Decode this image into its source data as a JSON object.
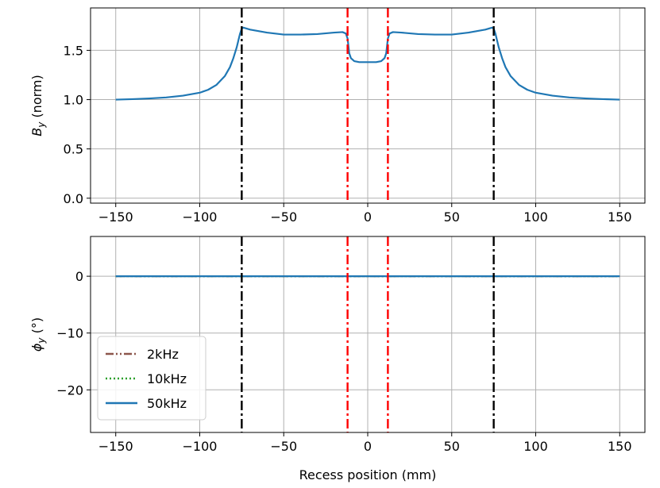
{
  "chart_data": [
    {
      "type": "line",
      "xlim": [
        -165,
        165
      ],
      "ylim": [
        -0.05,
        1.93
      ],
      "xticks": [
        -150,
        -100,
        -50,
        0,
        50,
        100,
        150
      ],
      "xtick_labels": [
        "−150",
        "−100",
        "−50",
        "0",
        "50",
        "100",
        "150"
      ],
      "yticks": [
        0.0,
        0.5,
        1.0,
        1.5
      ],
      "ytick_labels": [
        "0.0",
        "0.5",
        "1.0",
        "1.5"
      ],
      "ylabel_main": "B",
      "ylabel_sub": "y",
      "ylabel_rest": " (norm)",
      "grid": true,
      "vlines": [
        {
          "x": -75,
          "color": "#000000",
          "style": "dashdot"
        },
        {
          "x": 75,
          "color": "#000000",
          "style": "dashdot"
        },
        {
          "x": -12,
          "color": "#ff0000",
          "style": "dashdot"
        },
        {
          "x": 12,
          "color": "#ff0000",
          "style": "dashdot"
        }
      ],
      "series": [
        {
          "color": "#1f77b4",
          "x": [
            -150,
            -140,
            -130,
            -120,
            -110,
            -100,
            -95,
            -90,
            -85,
            -82,
            -80,
            -78,
            -77,
            -76,
            -75,
            -74,
            -72,
            -70,
            -60,
            -50,
            -40,
            -30,
            -20,
            -15,
            -13,
            -12,
            -11,
            -10,
            -8,
            -5,
            0,
            5,
            8,
            10,
            11,
            12,
            13,
            15,
            20,
            30,
            40,
            50,
            60,
            70,
            72,
            74,
            75,
            76,
            77,
            78,
            80,
            82,
            85,
            90,
            95,
            100,
            110,
            120,
            130,
            140,
            150
          ],
          "y": [
            1.0,
            1.005,
            1.012,
            1.022,
            1.04,
            1.07,
            1.1,
            1.15,
            1.24,
            1.33,
            1.42,
            1.53,
            1.6,
            1.67,
            1.72,
            1.73,
            1.72,
            1.71,
            1.68,
            1.66,
            1.66,
            1.665,
            1.68,
            1.685,
            1.67,
            1.62,
            1.47,
            1.42,
            1.39,
            1.38,
            1.38,
            1.38,
            1.39,
            1.42,
            1.47,
            1.62,
            1.67,
            1.685,
            1.68,
            1.665,
            1.66,
            1.66,
            1.68,
            1.71,
            1.72,
            1.73,
            1.72,
            1.67,
            1.6,
            1.53,
            1.42,
            1.33,
            1.24,
            1.15,
            1.1,
            1.07,
            1.04,
            1.022,
            1.012,
            1.005,
            1.0
          ]
        }
      ]
    },
    {
      "type": "line",
      "xlim": [
        -165,
        165
      ],
      "ylim": [
        -27.5,
        7
      ],
      "xticks": [
        -150,
        -100,
        -50,
        0,
        50,
        100,
        150
      ],
      "xtick_labels": [
        "−150",
        "−100",
        "−50",
        "0",
        "50",
        "100",
        "150"
      ],
      "yticks": [
        0,
        -10,
        -20
      ],
      "ytick_labels": [
        "0",
        "−10",
        "−20"
      ],
      "ylabel_main": "ϕ",
      "ylabel_sub": "y",
      "ylabel_rest": " (°)",
      "xlabel": "Recess position (mm)",
      "grid": true,
      "legend_position": "lower-left",
      "vlines": [
        {
          "x": -75,
          "color": "#000000",
          "style": "dashdot"
        },
        {
          "x": 75,
          "color": "#000000",
          "style": "dashdot"
        },
        {
          "x": -12,
          "color": "#ff0000",
          "style": "dashdot"
        },
        {
          "x": 12,
          "color": "#ff0000",
          "style": "dashdot"
        }
      ],
      "series": [
        {
          "name": "2kHz",
          "color": "#8c564b",
          "style": "dashdotdot",
          "x": [
            -150,
            150
          ],
          "y": [
            0,
            0
          ]
        },
        {
          "name": "10kHz",
          "color": "#2ca02c",
          "style": "dotted",
          "x": [
            -150,
            150
          ],
          "y": [
            0,
            0
          ]
        },
        {
          "name": "50kHz",
          "color": "#1f77b4",
          "style": "solid",
          "x": [
            -150,
            150
          ],
          "y": [
            0,
            0
          ]
        }
      ]
    }
  ]
}
